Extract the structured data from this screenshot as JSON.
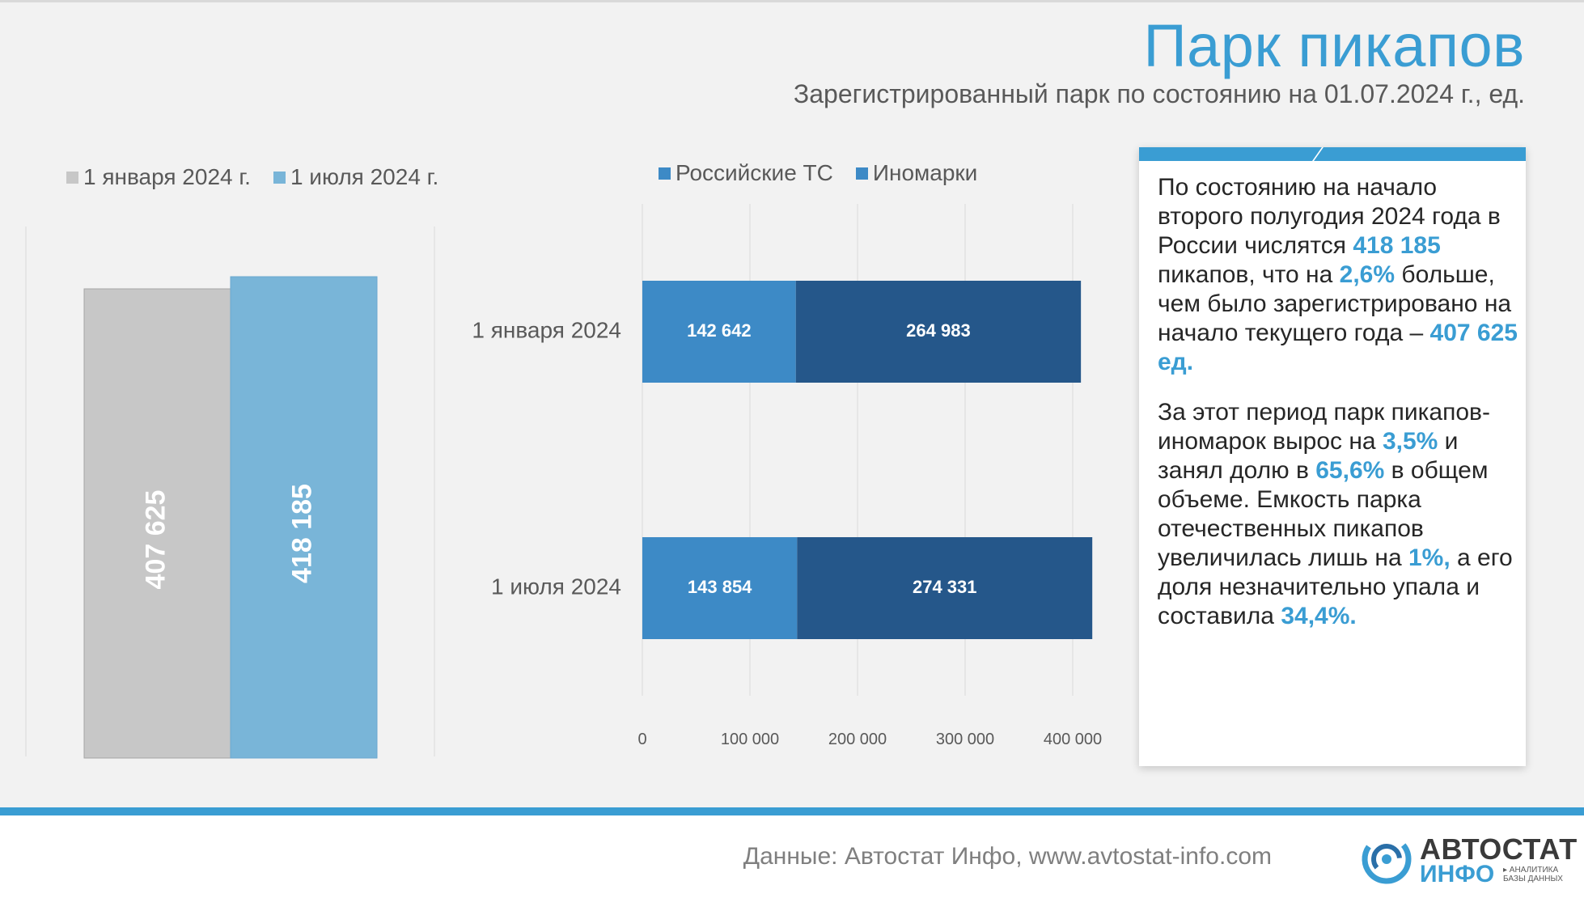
{
  "header": {
    "title": "Парк пикапов",
    "subtitle": "Зарегистрированный парк по состоянию на 01.07.2024 г., ед."
  },
  "colors": {
    "accent": "#3a9dd3",
    "jan_bar": "#c7c7c7",
    "jul_bar": "#79b5d8",
    "russian": "#3d8ac6",
    "foreign": "#25578a"
  },
  "chart_data": [
    {
      "type": "bar",
      "categories": [
        "1 января 2024 г.",
        "1 июля 2024 г."
      ],
      "values": [
        407625,
        418185
      ],
      "value_labels": [
        "407 625",
        "418 185"
      ],
      "legend": [
        "1 января 2024 г.",
        "1 июля 2024 г."
      ],
      "legend_position": "top-left",
      "grid": false
    },
    {
      "type": "bar",
      "orientation": "horizontal",
      "stacked": true,
      "categories": [
        "1 января 2024",
        "1 июля 2024"
      ],
      "series": [
        {
          "name": "Российские ТС",
          "values": [
            142642,
            143854
          ],
          "labels": [
            "142 642",
            "143 854"
          ]
        },
        {
          "name": "Иномарки",
          "values": [
            264983,
            274331
          ],
          "labels": [
            "264 983",
            "274 331"
          ]
        }
      ],
      "xlim": [
        0,
        400000
      ],
      "x_ticks": [
        "0",
        "100 000",
        "200 000",
        "300 000",
        "400 000"
      ],
      "legend_position": "top",
      "grid": true
    }
  ],
  "panel": {
    "p1": {
      "t1": "По состоянию на начало второго полугодия 2024 года в России числятся ",
      "h1": "418 185",
      "t2": " пикапов, что на ",
      "h2": "2,6%",
      "t3": " больше, чем было зарегистрировано на начало текущего года – ",
      "h3": "407 625 ед."
    },
    "p2": {
      "t1": "За этот период парк пикапов- иномарок вырос на ",
      "h1": "3,5%",
      "t2": " и занял долю в ",
      "h2": "65,6%",
      "t3": " в общем объеме. Емкость парка отечественных пикапов увеличилась лишь на ",
      "h3": "1%,",
      "t4": " а его доля незначительно упала и составила ",
      "h4": "34,4%."
    }
  },
  "footer": {
    "source": "Данные: Автостат Инфо, www.avtostat-info.com",
    "logo_top": "АВТОСТАТ",
    "logo_bottom": "ИНФО",
    "logo_tag": "▸ АНАЛИТИКА БАЗЫ ДАННЫХ"
  }
}
